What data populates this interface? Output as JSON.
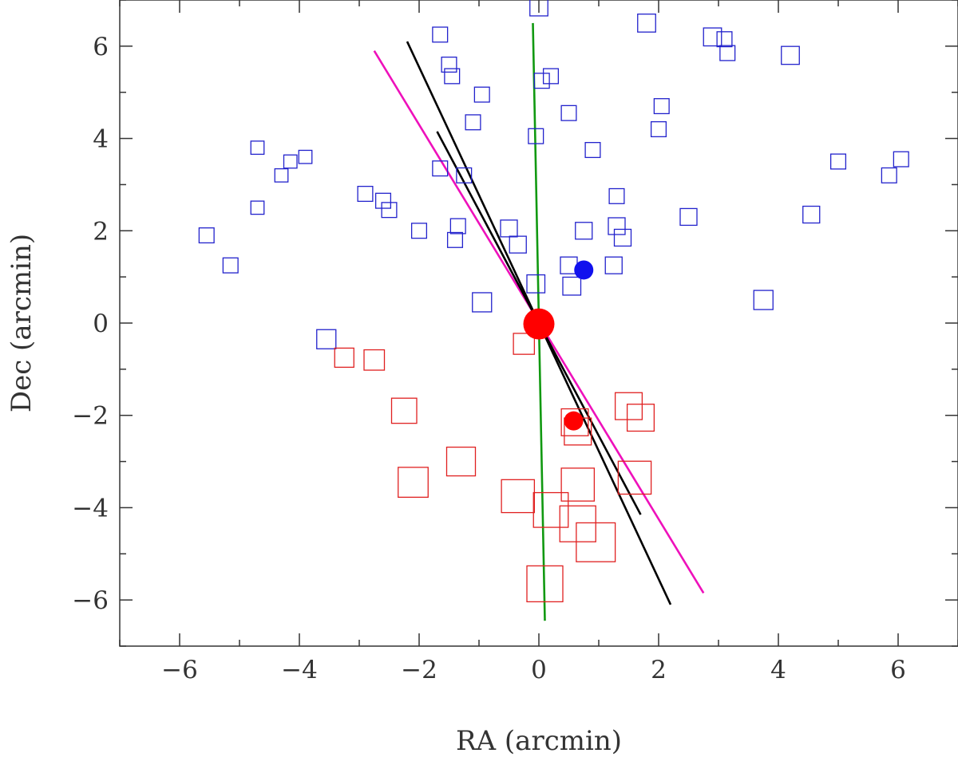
{
  "chart_data": {
    "type": "scatter",
    "xlabel": "RA (arcmin)",
    "ylabel": "Dec (arcmin)",
    "xlim": [
      -7,
      7
    ],
    "ylim": [
      -7,
      7
    ],
    "xticks": [
      -6,
      -4,
      -2,
      0,
      2,
      4,
      6
    ],
    "yticks": [
      -6,
      -4,
      -2,
      0,
      2,
      4,
      6
    ],
    "xtick_labels": [
      "−6",
      "−4",
      "−2",
      "0",
      "2",
      "4",
      "6"
    ],
    "ytick_labels": [
      "−6",
      "−4",
      "−2",
      "0",
      "2",
      "4",
      "6"
    ],
    "grid": false,
    "blue_color": "#2222cc",
    "red_color": "#e02020",
    "blue_squares": [
      [
        0,
        6.85,
        0.3
      ],
      [
        1.8,
        6.5,
        0.3
      ],
      [
        -1.65,
        6.25,
        0.25
      ],
      [
        2.9,
        6.2,
        0.3
      ],
      [
        3.1,
        6.15,
        0.25
      ],
      [
        3.15,
        5.85,
        0.25
      ],
      [
        4.2,
        5.8,
        0.3
      ],
      [
        -1.5,
        5.6,
        0.25
      ],
      [
        -1.45,
        5.35,
        0.25
      ],
      [
        0.2,
        5.35,
        0.25
      ],
      [
        0.05,
        5.25,
        0.25
      ],
      [
        -0.95,
        4.95,
        0.25
      ],
      [
        0.5,
        4.55,
        0.25
      ],
      [
        2.05,
        4.7,
        0.25
      ],
      [
        -1.1,
        4.35,
        0.25
      ],
      [
        2.0,
        4.2,
        0.25
      ],
      [
        -0.05,
        4.05,
        0.25
      ],
      [
        0.9,
        3.75,
        0.25
      ],
      [
        -4.7,
        3.8,
        0.22
      ],
      [
        -4.15,
        3.5,
        0.22
      ],
      [
        -3.9,
        3.6,
        0.22
      ],
      [
        -4.3,
        3.2,
        0.22
      ],
      [
        -1.65,
        3.35,
        0.25
      ],
      [
        -1.25,
        3.2,
        0.25
      ],
      [
        5.0,
        3.5,
        0.25
      ],
      [
        6.05,
        3.55,
        0.25
      ],
      [
        5.85,
        3.2,
        0.25
      ],
      [
        -2.9,
        2.8,
        0.25
      ],
      [
        -2.6,
        2.65,
        0.25
      ],
      [
        -2.5,
        2.45,
        0.25
      ],
      [
        -4.7,
        2.5,
        0.22
      ],
      [
        1.3,
        2.75,
        0.25
      ],
      [
        2.5,
        2.3,
        0.28
      ],
      [
        4.55,
        2.35,
        0.28
      ],
      [
        -2.0,
        2.0,
        0.25
      ],
      [
        -1.35,
        2.1,
        0.25
      ],
      [
        -0.5,
        2.05,
        0.28
      ],
      [
        -1.4,
        1.8,
        0.25
      ],
      [
        0.75,
        2.0,
        0.28
      ],
      [
        1.3,
        2.1,
        0.28
      ],
      [
        -0.35,
        1.7,
        0.28
      ],
      [
        1.4,
        1.85,
        0.28
      ],
      [
        -5.55,
        1.9,
        0.25
      ],
      [
        -5.15,
        1.25,
        0.25
      ],
      [
        0.5,
        1.25,
        0.28
      ],
      [
        1.25,
        1.25,
        0.28
      ],
      [
        -0.05,
        0.85,
        0.3
      ],
      [
        0.55,
        0.8,
        0.3
      ],
      [
        -0.95,
        0.45,
        0.32
      ],
      [
        3.75,
        0.5,
        0.32
      ],
      [
        -3.55,
        -0.35,
        0.32
      ]
    ],
    "red_squares": [
      [
        -3.25,
        -0.75,
        0.32
      ],
      [
        -2.75,
        -0.8,
        0.34
      ],
      [
        -0.25,
        -0.45,
        0.35
      ],
      [
        -2.25,
        -1.9,
        0.42
      ],
      [
        1.5,
        -1.8,
        0.45
      ],
      [
        1.7,
        -2.05,
        0.45
      ],
      [
        0.6,
        -2.15,
        0.45
      ],
      [
        0.65,
        -2.35,
        0.45
      ],
      [
        -1.3,
        -3.0,
        0.48
      ],
      [
        -2.1,
        -3.45,
        0.5
      ],
      [
        1.6,
        -3.35,
        0.55
      ],
      [
        0.65,
        -3.5,
        0.55
      ],
      [
        -0.35,
        -3.75,
        0.55
      ],
      [
        0.2,
        -4.05,
        0.58
      ],
      [
        0.65,
        -4.35,
        0.6
      ],
      [
        0.95,
        -4.75,
        0.65
      ],
      [
        0.1,
        -5.65,
        0.6
      ]
    ],
    "filled_points": [
      {
        "x": 0.75,
        "y": 1.15,
        "size": 0.16,
        "color": "blue"
      },
      {
        "x": 0.0,
        "y": -0.02,
        "size": 0.26,
        "color": "red"
      },
      {
        "x": 0.58,
        "y": -2.12,
        "size": 0.16,
        "color": "red"
      }
    ],
    "lines": [
      {
        "color": "#ee11bb",
        "points": [
          [
            -2.75,
            5.9
          ],
          [
            2.75,
            -5.85
          ]
        ]
      },
      {
        "color": "#000000",
        "points": [
          [
            -2.2,
            6.1
          ],
          [
            2.2,
            -6.1
          ]
        ]
      },
      {
        "color": "#000000",
        "points": [
          [
            -1.7,
            4.15
          ],
          [
            1.7,
            -4.15
          ]
        ]
      },
      {
        "color": "#119911",
        "points": [
          [
            -0.1,
            6.5
          ],
          [
            0.1,
            -6.45
          ]
        ]
      }
    ]
  }
}
